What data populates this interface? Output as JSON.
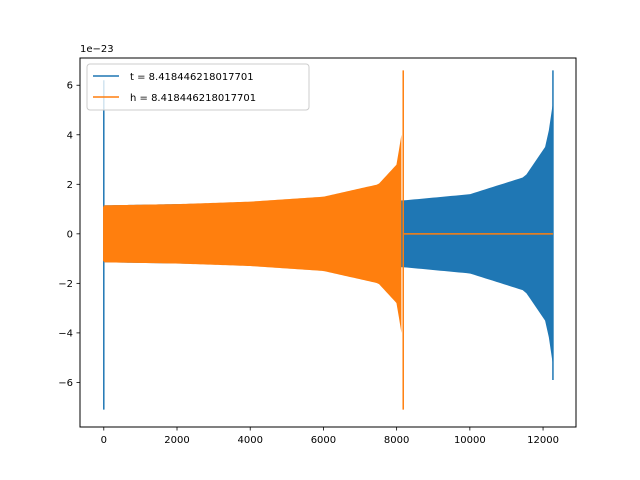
{
  "chart_data": {
    "type": "line",
    "offset_text": "1e−23",
    "x_axis": {
      "lim": [
        -650,
        12900
      ],
      "ticks": [
        0,
        2000,
        4000,
        6000,
        8000,
        10000,
        12000
      ],
      "tick_labels": [
        "0",
        "2000",
        "4000",
        "6000",
        "8000",
        "10000",
        "12000"
      ]
    },
    "y_axis": {
      "lim": [
        -7.8,
        7.1
      ],
      "ticks": [
        -6,
        -4,
        -2,
        0,
        2,
        4,
        6
      ],
      "tick_labels": [
        "−6",
        "−4",
        "−2",
        "0",
        "2",
        "4",
        "6"
      ]
    },
    "legend": {
      "placement": "top-left"
    },
    "series": [
      {
        "name": "t = 8.418446218017701",
        "color": "#1f77b4",
        "description_points": {
          "start_spike": {
            "x": 0,
            "ymax": 6.2,
            "ymin": -7.1
          },
          "envelope": [
            {
              "x": 0,
              "amp": 1.15
            },
            {
              "x": 8200,
              "amp": 1.35
            },
            {
              "x": 10000,
              "amp": 1.6
            },
            {
              "x": 11500,
              "amp": 2.3
            },
            {
              "x": 12100,
              "amp": 3.6
            },
            {
              "x": 12260,
              "amp": 5.2
            }
          ],
          "end_peak": {
            "x": 12270,
            "ymax": 6.6,
            "ymin": -5.9
          }
        }
      },
      {
        "name": "h = 8.418446218017701",
        "color": "#ff7f0e",
        "description_points": {
          "start": {
            "x": 0,
            "ymax": 1.1,
            "ymin": -1.1
          },
          "envelope": [
            {
              "x": 0,
              "amp": 1.15
            },
            {
              "x": 2000,
              "amp": 1.2
            },
            {
              "x": 4000,
              "amp": 1.3
            },
            {
              "x": 6000,
              "amp": 1.5
            },
            {
              "x": 7500,
              "amp": 2.0
            },
            {
              "x": 8000,
              "amp": 2.8
            },
            {
              "x": 8130,
              "amp": 4.0
            }
          ],
          "end_peak": {
            "x": 8180,
            "ymax": 6.6,
            "ymin": -7.1
          },
          "flat_after": {
            "x0": 8200,
            "x1": 12270,
            "y": 0
          }
        }
      }
    ]
  }
}
